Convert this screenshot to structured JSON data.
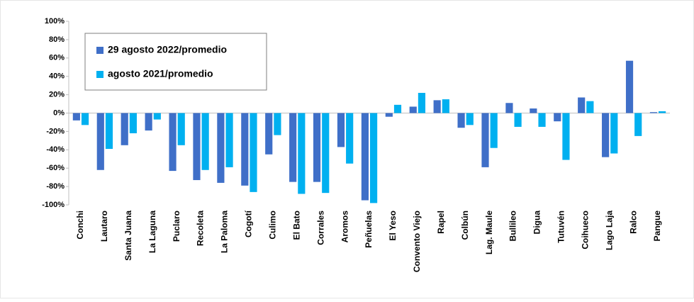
{
  "chart_data": {
    "type": "bar",
    "categories": [
      "Conchi",
      "Lautaro",
      "Santa Juana",
      "La Laguna",
      "Puclaro",
      "Recoleta",
      "La Paloma",
      "Cogotí",
      "Culimo",
      "El Bato",
      "Corrales",
      "Aromos",
      "Peñuelas",
      "El Yeso",
      "Convento Viejo",
      "Rapel",
      "Colbún",
      "Lag. Maule",
      "Bullileo",
      "Digua",
      "Tutuvén",
      "Coihueco",
      "Lago Laja",
      "Ralco",
      "Pangue"
    ],
    "series": [
      {
        "name": "29 agosto 2022/promedio",
        "color": "#3f6fc8",
        "values": [
          -8,
          -62,
          -35,
          -19,
          -63,
          -73,
          -76,
          -79,
          -45,
          -75,
          -75,
          -37,
          -95,
          -4,
          7,
          14,
          -16,
          -59,
          11,
          5,
          -9,
          17,
          -48,
          57,
          1
        ]
      },
      {
        "name": "agosto 2021/promedio",
        "color": "#00b0f0",
        "values": [
          -13,
          -39,
          -22,
          -7,
          -35,
          -62,
          -59,
          -86,
          -24,
          -88,
          -87,
          -55,
          -98,
          9,
          22,
          15,
          -13,
          -38,
          -15,
          -15,
          -51,
          13,
          -44,
          -25,
          2
        ]
      }
    ],
    "ylim": [
      -100,
      100
    ],
    "yticks": [
      {
        "value": -100,
        "label": "-100%"
      },
      {
        "value": -80,
        "label": "-80%"
      },
      {
        "value": -60,
        "label": "-60%"
      },
      {
        "value": -40,
        "label": "-40%"
      },
      {
        "value": -20,
        "label": "-20%"
      },
      {
        "value": 0,
        "label": "0%"
      },
      {
        "value": 20,
        "label": "20%"
      },
      {
        "value": 40,
        "label": "40%"
      },
      {
        "value": 60,
        "label": "60%"
      },
      {
        "value": 80,
        "label": "80%"
      },
      {
        "value": 100,
        "label": "100%"
      }
    ],
    "legend": "top-left"
  }
}
